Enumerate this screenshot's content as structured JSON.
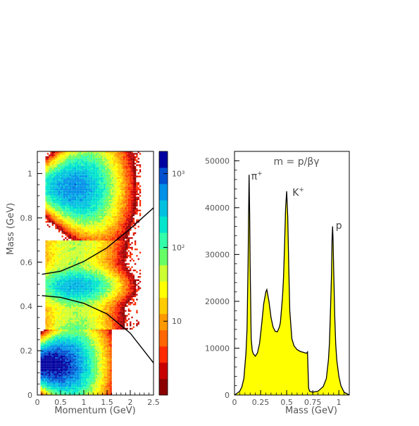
{
  "chart_data": [
    {
      "type": "heatmap",
      "xlabel": "Momentum (GeV)",
      "ylabel": "Mass (GeV)",
      "xlim": [
        0,
        2.5
      ],
      "ylim": [
        0,
        1.1
      ],
      "x_ticks": [
        "0",
        "0.5",
        "1",
        "1.5",
        "2",
        "2.5"
      ],
      "y_ticks": [
        "0",
        "0.2",
        "0.4",
        "0.6",
        "0.8",
        "1"
      ],
      "colorbar": {
        "scale": "log",
        "range": [
          1,
          2000
        ],
        "tick_labels": [
          "10",
          "10²",
          "10³"
        ],
        "tick_values": [
          10,
          100,
          1000
        ]
      },
      "bands": [
        {
          "particle": "proton",
          "mass": 0.94,
          "p_range": [
            0.15,
            2.2
          ],
          "peak_p": 0.75,
          "peak_level": 600
        },
        {
          "particle": "kaon",
          "mass_band": [
            0.3,
            0.7
          ],
          "p_range": [
            0.15,
            2.2
          ],
          "core_mass": 0.495,
          "peak_p": 0.8,
          "peak_level": 400
        },
        {
          "particle": "pion",
          "mass": 0.14,
          "p_range": [
            0.05,
            1.6
          ],
          "peak_p": 0.25,
          "peak_level": 2000
        }
      ],
      "cut_curves": [
        {
          "x": [
            0.1,
            0.5,
            1.0,
            1.5,
            2.0,
            2.5
          ],
          "y": [
            0.545,
            0.559,
            0.603,
            0.665,
            0.751,
            0.845
          ]
        },
        {
          "x": [
            0.1,
            0.5,
            1.0,
            1.5,
            2.0,
            2.5
          ],
          "y": [
            0.449,
            0.441,
            0.414,
            0.366,
            0.279,
            0.145
          ]
        }
      ]
    },
    {
      "type": "area",
      "title": "m = p/βγ",
      "xlabel": "Mass (GeV)",
      "xlim": [
        0,
        1.1
      ],
      "ylim": [
        0,
        52000
      ],
      "x_ticks": [
        "0",
        "0.25",
        "0.5",
        "0.75",
        "1"
      ],
      "y_ticks": [
        "0",
        "10000",
        "20000",
        "30000",
        "40000",
        "50000"
      ],
      "fill_color": "#ffff00",
      "annotations": [
        {
          "text_main": "π",
          "text_sup": "+",
          "x": 0.16,
          "y": 46000
        },
        {
          "text_main": "K",
          "text_sup": "+",
          "x": 0.555,
          "y": 42500
        },
        {
          "text_main": "p",
          "text_sup": "",
          "x": 0.97,
          "y": 35500
        }
      ],
      "x": [
        0.0,
        0.02,
        0.05,
        0.07,
        0.09,
        0.11,
        0.12,
        0.13,
        0.135,
        0.14,
        0.145,
        0.15,
        0.16,
        0.17,
        0.18,
        0.2,
        0.22,
        0.24,
        0.26,
        0.28,
        0.3,
        0.31,
        0.33,
        0.35,
        0.37,
        0.39,
        0.41,
        0.43,
        0.44,
        0.46,
        0.47,
        0.48,
        0.49,
        0.5,
        0.51,
        0.52,
        0.53,
        0.55,
        0.57,
        0.6,
        0.63,
        0.66,
        0.69,
        0.7,
        0.71,
        0.72,
        0.75,
        0.8,
        0.85,
        0.88,
        0.9,
        0.91,
        0.92,
        0.93,
        0.935,
        0.94,
        0.945,
        0.95,
        0.96,
        0.97,
        0.98,
        1.0,
        1.02,
        1.05,
        1.1
      ],
      "y": [
        0,
        300,
        800,
        1700,
        3500,
        9000,
        14000,
        28000,
        38000,
        47000,
        39000,
        28000,
        12000,
        9500,
        8800,
        8300,
        9000,
        11000,
        15000,
        19500,
        22000,
        22500,
        20000,
        16500,
        14500,
        13600,
        13500,
        14500,
        15500,
        21000,
        25000,
        32000,
        40000,
        43500,
        38000,
        27000,
        18000,
        12000,
        10500,
        9700,
        9300,
        9100,
        8900,
        9200,
        1500,
        800,
        600,
        800,
        1800,
        3500,
        7500,
        11000,
        18000,
        26000,
        33000,
        36000,
        33000,
        27000,
        17000,
        11000,
        7500,
        4000,
        2000,
        600,
        0
      ]
    }
  ]
}
